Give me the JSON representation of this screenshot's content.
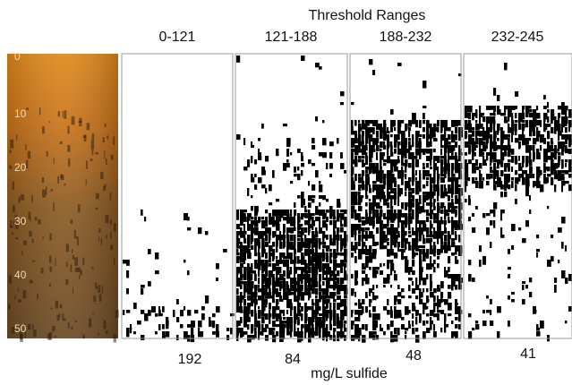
{
  "header": {
    "title": "Threshold Ranges"
  },
  "depth_labels": [
    "0",
    "10",
    "20",
    "30",
    "40",
    "50"
  ],
  "panels": [
    {
      "range": "0-121",
      "value": 192
    },
    {
      "range": "121-188",
      "value": 84
    },
    {
      "range": "188-232",
      "value": 48
    },
    {
      "range": "232-245",
      "value": 41
    }
  ],
  "unit": "mg/L sulfide"
}
